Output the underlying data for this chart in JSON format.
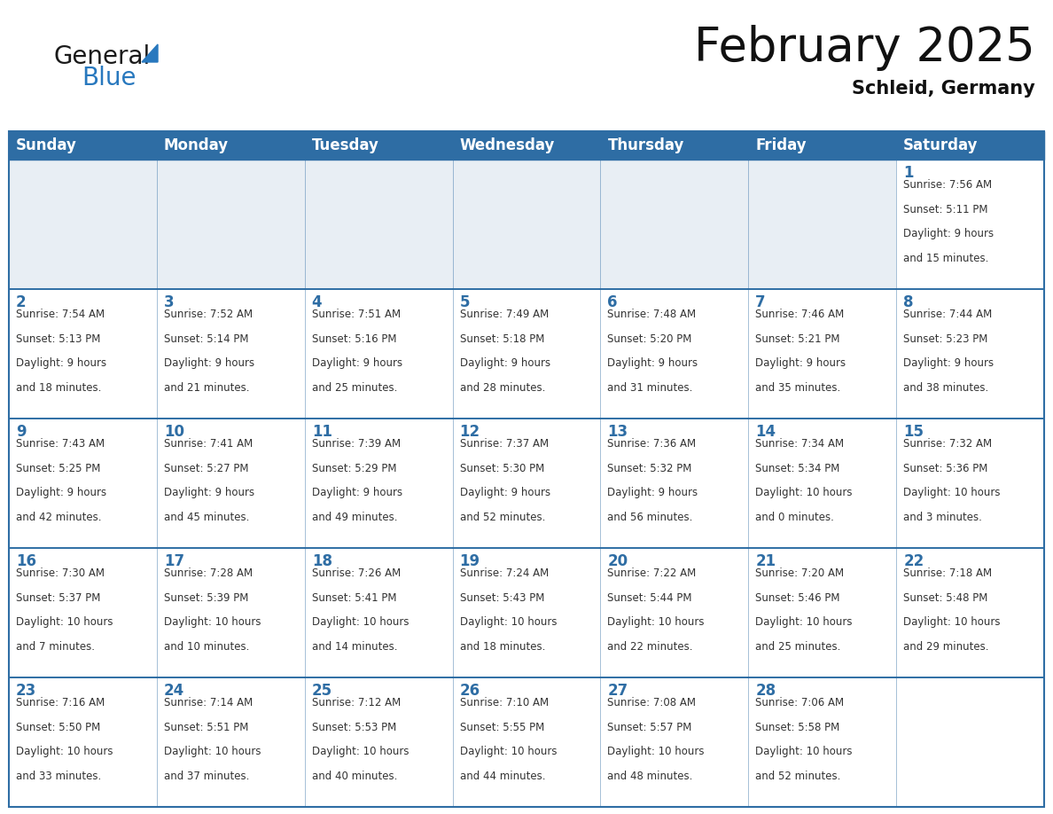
{
  "title": "February 2025",
  "subtitle": "Schleid, Germany",
  "header_bg": "#2E6DA4",
  "header_text_color": "#FFFFFF",
  "day_names": [
    "Sunday",
    "Monday",
    "Tuesday",
    "Wednesday",
    "Thursday",
    "Friday",
    "Saturday"
  ],
  "title_fontsize": 38,
  "subtitle_fontsize": 15,
  "header_fontsize": 12,
  "cell_day_fontsize": 12,
  "cell_info_fontsize": 8.5,
  "bg_color": "#FFFFFF",
  "cell_bg_gray": "#E8EEF4",
  "grid_color": "#2E6DA4",
  "day_color": "#2E6DA4",
  "info_color": "#333333",
  "logo_general_color": "#1a1a1a",
  "logo_blue_color": "#2878BE",
  "logo_triangle_color": "#2878BE",
  "calendar": [
    [
      null,
      null,
      null,
      null,
      null,
      null,
      {
        "day": 1,
        "sunrise": "7:56 AM",
        "sunset": "5:11 PM",
        "daylight": "9 hours and 15 minutes."
      }
    ],
    [
      {
        "day": 2,
        "sunrise": "7:54 AM",
        "sunset": "5:13 PM",
        "daylight": "9 hours and 18 minutes."
      },
      {
        "day": 3,
        "sunrise": "7:52 AM",
        "sunset": "5:14 PM",
        "daylight": "9 hours and 21 minutes."
      },
      {
        "day": 4,
        "sunrise": "7:51 AM",
        "sunset": "5:16 PM",
        "daylight": "9 hours and 25 minutes."
      },
      {
        "day": 5,
        "sunrise": "7:49 AM",
        "sunset": "5:18 PM",
        "daylight": "9 hours and 28 minutes."
      },
      {
        "day": 6,
        "sunrise": "7:48 AM",
        "sunset": "5:20 PM",
        "daylight": "9 hours and 31 minutes."
      },
      {
        "day": 7,
        "sunrise": "7:46 AM",
        "sunset": "5:21 PM",
        "daylight": "9 hours and 35 minutes."
      },
      {
        "day": 8,
        "sunrise": "7:44 AM",
        "sunset": "5:23 PM",
        "daylight": "9 hours and 38 minutes."
      }
    ],
    [
      {
        "day": 9,
        "sunrise": "7:43 AM",
        "sunset": "5:25 PM",
        "daylight": "9 hours and 42 minutes."
      },
      {
        "day": 10,
        "sunrise": "7:41 AM",
        "sunset": "5:27 PM",
        "daylight": "9 hours and 45 minutes."
      },
      {
        "day": 11,
        "sunrise": "7:39 AM",
        "sunset": "5:29 PM",
        "daylight": "9 hours and 49 minutes."
      },
      {
        "day": 12,
        "sunrise": "7:37 AM",
        "sunset": "5:30 PM",
        "daylight": "9 hours and 52 minutes."
      },
      {
        "day": 13,
        "sunrise": "7:36 AM",
        "sunset": "5:32 PM",
        "daylight": "9 hours and 56 minutes."
      },
      {
        "day": 14,
        "sunrise": "7:34 AM",
        "sunset": "5:34 PM",
        "daylight": "10 hours and 0 minutes."
      },
      {
        "day": 15,
        "sunrise": "7:32 AM",
        "sunset": "5:36 PM",
        "daylight": "10 hours and 3 minutes."
      }
    ],
    [
      {
        "day": 16,
        "sunrise": "7:30 AM",
        "sunset": "5:37 PM",
        "daylight": "10 hours and 7 minutes."
      },
      {
        "day": 17,
        "sunrise": "7:28 AM",
        "sunset": "5:39 PM",
        "daylight": "10 hours and 10 minutes."
      },
      {
        "day": 18,
        "sunrise": "7:26 AM",
        "sunset": "5:41 PM",
        "daylight": "10 hours and 14 minutes."
      },
      {
        "day": 19,
        "sunrise": "7:24 AM",
        "sunset": "5:43 PM",
        "daylight": "10 hours and 18 minutes."
      },
      {
        "day": 20,
        "sunrise": "7:22 AM",
        "sunset": "5:44 PM",
        "daylight": "10 hours and 22 minutes."
      },
      {
        "day": 21,
        "sunrise": "7:20 AM",
        "sunset": "5:46 PM",
        "daylight": "10 hours and 25 minutes."
      },
      {
        "day": 22,
        "sunrise": "7:18 AM",
        "sunset": "5:48 PM",
        "daylight": "10 hours and 29 minutes."
      }
    ],
    [
      {
        "day": 23,
        "sunrise": "7:16 AM",
        "sunset": "5:50 PM",
        "daylight": "10 hours and 33 minutes."
      },
      {
        "day": 24,
        "sunrise": "7:14 AM",
        "sunset": "5:51 PM",
        "daylight": "10 hours and 37 minutes."
      },
      {
        "day": 25,
        "sunrise": "7:12 AM",
        "sunset": "5:53 PM",
        "daylight": "10 hours and 40 minutes."
      },
      {
        "day": 26,
        "sunrise": "7:10 AM",
        "sunset": "5:55 PM",
        "daylight": "10 hours and 44 minutes."
      },
      {
        "day": 27,
        "sunrise": "7:08 AM",
        "sunset": "5:57 PM",
        "daylight": "10 hours and 48 minutes."
      },
      {
        "day": 28,
        "sunrise": "7:06 AM",
        "sunset": "5:58 PM",
        "daylight": "10 hours and 52 minutes."
      },
      null
    ]
  ]
}
